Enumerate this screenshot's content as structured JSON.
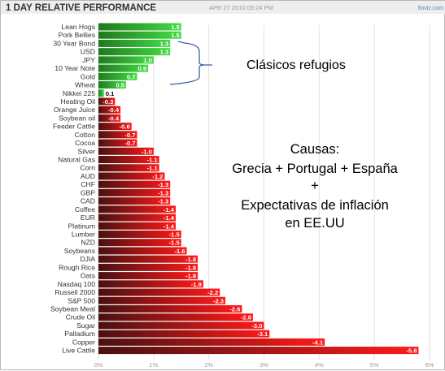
{
  "header": {
    "title": "1 DAY RELATIVE PERFORMANCE",
    "timestamp": "APR 27 2010 05:24 PM",
    "logo": "finviz.com"
  },
  "annotations": {
    "refugios": "Clásicos  refugios",
    "causas_title": "Causas:",
    "causas_line1": "Grecia + Portugal + España",
    "causas_plus": "+",
    "causas_line2": "Expectativas de inflación",
    "causas_line3": "en EE.UU"
  },
  "colors": {
    "positive_light": "#44dd44",
    "positive_dark": "#1e7a1e",
    "negative_dark": "#4a1010",
    "negative_light": "#ff1a1a",
    "bracket": "#3a5fa8"
  },
  "chart_data": {
    "type": "bar",
    "orientation": "horizontal",
    "title": "1 DAY RELATIVE PERFORMANCE",
    "categories": [
      "Lean Hogs",
      "Pork Bellies",
      "30 Year Bond",
      "USD",
      "JPY",
      "10 Year Note",
      "Gold",
      "Wheat",
      "Nikkei 225",
      "Heating Oil",
      "Orange Juice",
      "Soybean oil",
      "Feeder Cattle",
      "Cotton",
      "Cocoa",
      "Silver",
      "Natural Gas",
      "Corn",
      "AUD",
      "CHF",
      "GBP",
      "CAD",
      "Coffee",
      "EUR",
      "Platinum",
      "Lumber",
      "NZD",
      "Soybeans",
      "DJIA",
      "Rough Rice",
      "Oats",
      "Nasdaq 100",
      "Russell 2000",
      "S&P 500",
      "Soybean Meal",
      "Crude Oil",
      "Sugar",
      "Palladium",
      "Copper",
      "Live Cattle"
    ],
    "values": [
      1.5,
      1.5,
      1.3,
      1.3,
      1.0,
      0.9,
      0.7,
      0.5,
      0.1,
      -0.3,
      -0.4,
      -0.4,
      -0.6,
      -0.7,
      -0.7,
      -1.0,
      -1.1,
      -1.1,
      -1.2,
      -1.3,
      -1.3,
      -1.3,
      -1.4,
      -1.4,
      -1.4,
      -1.5,
      -1.5,
      -1.6,
      -1.8,
      -1.8,
      -1.8,
      -1.9,
      -2.2,
      -2.3,
      -2.6,
      -2.8,
      -3.0,
      -3.1,
      -4.1,
      -5.8
    ],
    "value_labels": [
      "1.5",
      "1.5",
      "1.3",
      "1.3",
      "1.0",
      "0.9",
      "0.7",
      "0.5",
      "0.1",
      "-0.3",
      "-0.4",
      "-0.4",
      "-0.6",
      "-0.7",
      "-0.7",
      "-1.0",
      "-1.1",
      "-1.1",
      "-1.2",
      "-1.3",
      "-1.3",
      "-1.3",
      "-1.4",
      "-1.4",
      "-1.4",
      "-1.5",
      "-1.5",
      "-1.6",
      "-1.8",
      "-1.8",
      "-1.8",
      "-1.9",
      "-2.2",
      "-2.3",
      "-2.6",
      "-2.8",
      "-3.0",
      "-3.1",
      "-4.1",
      "-5.8"
    ],
    "x_ticks": [
      0,
      1,
      2,
      3,
      4,
      5,
      6
    ],
    "x_tick_labels": [
      "0%",
      "1%",
      "2%",
      "3%",
      "4%",
      "5%",
      "6%"
    ],
    "xlim": [
      0,
      6
    ],
    "scale": "absolute value",
    "grid": true
  }
}
